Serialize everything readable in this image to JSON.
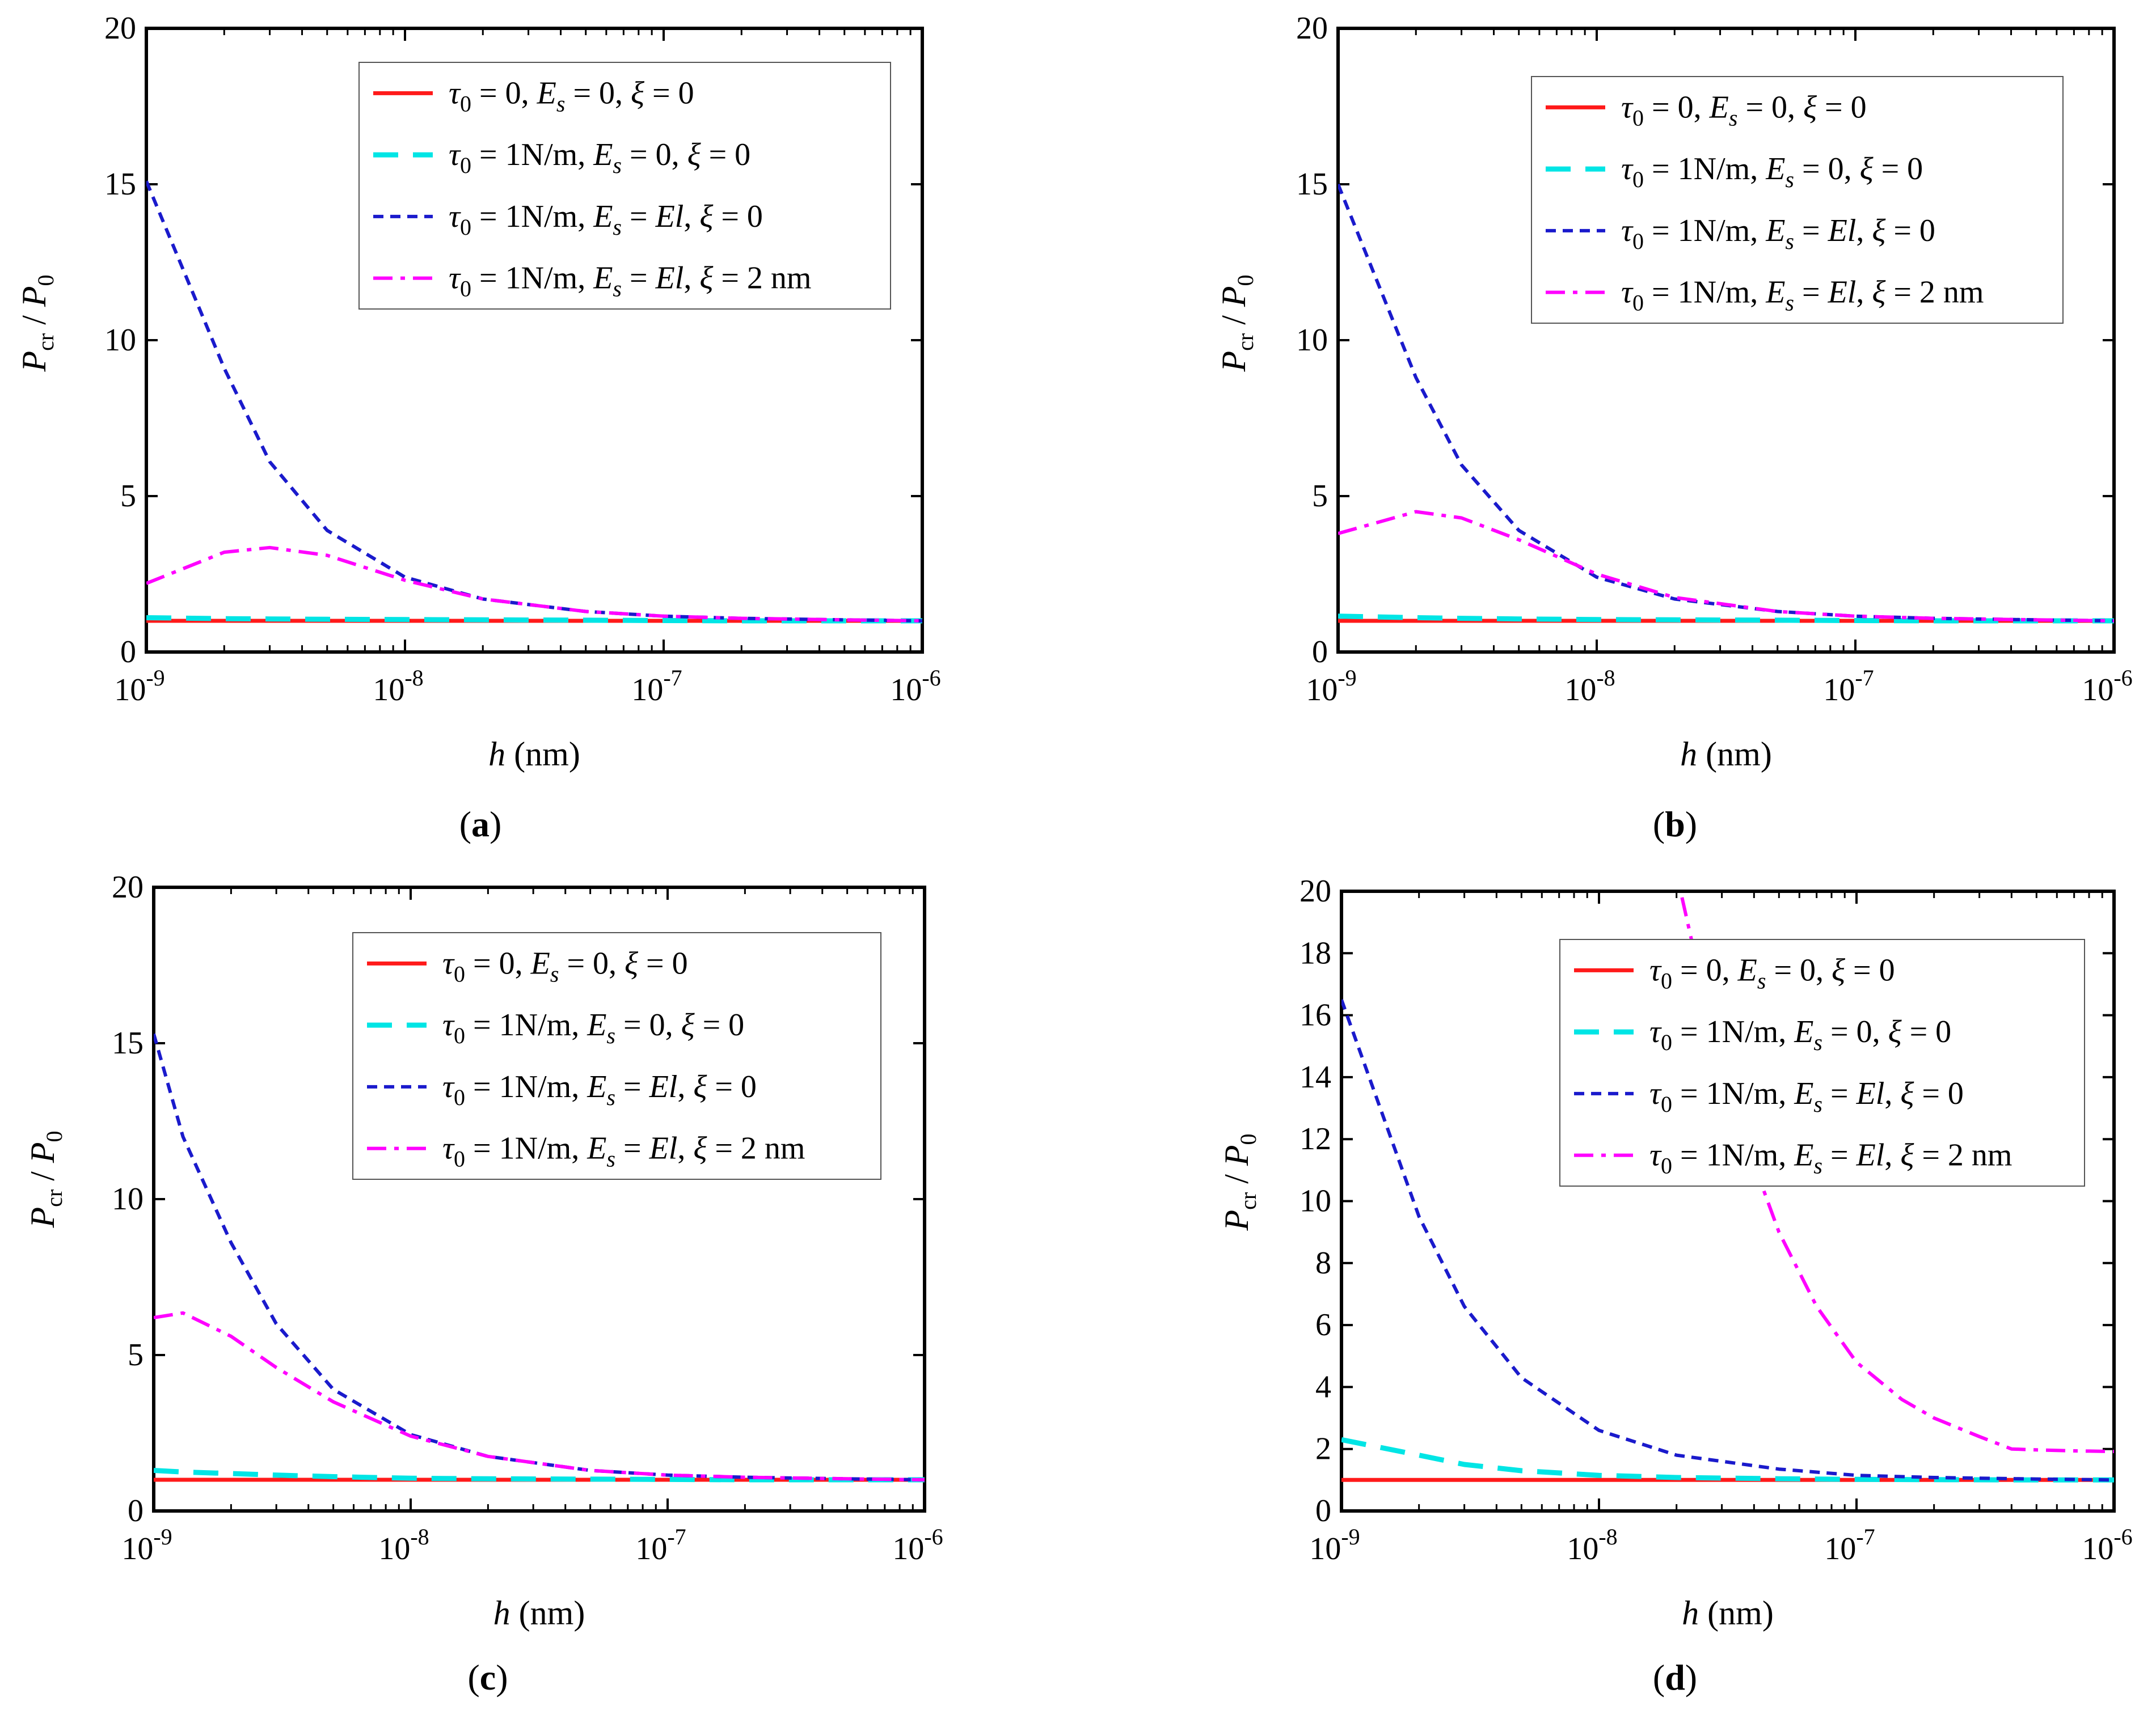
{
  "figure": {
    "panel_labels": [
      "a",
      "b",
      "c",
      "d"
    ],
    "x_tick_labels": [
      {
        "base": "10",
        "exp": "-9"
      },
      {
        "base": "10",
        "exp": "-8"
      },
      {
        "base": "10",
        "exp": "-7"
      },
      {
        "base": "10",
        "exp": "-6"
      }
    ],
    "xlabel": {
      "var": "h",
      "unit": "(nm)"
    },
    "ylabel": {
      "p": "P",
      "cr": "cr",
      "slash": "/",
      "zero": "0"
    }
  },
  "colors": {
    "series1": "#ff1a1a",
    "series2": "#00e5e5",
    "series3": "#1a1acc",
    "series4": "#ff00ff"
  },
  "legend_entries": [
    {
      "tau": "τ",
      "tau_sub": "0",
      "tau_val": " = 0, ",
      "es": "E",
      "es_sub": "s",
      "es_val": " = 0, ",
      "xi": "ξ",
      "xi_val": " = 0"
    },
    {
      "tau": "τ",
      "tau_sub": "0",
      "tau_val": " = 1N/m, ",
      "es": "E",
      "es_sub": "s",
      "es_val": " = 0, ",
      "xi": "ξ",
      "xi_val": " = 0"
    },
    {
      "tau": "τ",
      "tau_sub": "0",
      "tau_val": " = 1N/m, ",
      "es": "E",
      "es_sub": "s",
      "es_val": " = ",
      "el": "El",
      "el_tail": ", ",
      "xi": "ξ",
      "xi_val": " = 0"
    },
    {
      "tau": "τ",
      "tau_sub": "0",
      "tau_val": " = 1N/m, ",
      "es": "E",
      "es_sub": "s",
      "es_val": " = ",
      "el": "El",
      "el_tail": ", ",
      "xi": "ξ",
      "xi_val": " = 2 nm"
    }
  ],
  "chart_data": [
    {
      "type": "line",
      "panel": "a",
      "xscale": "log",
      "xlim": [
        1e-09,
        1e-06
      ],
      "ylim": [
        0,
        20
      ],
      "yticks": [
        0,
        5,
        10,
        15,
        20
      ],
      "legend_position": "top-right",
      "x": [
        1e-09,
        2e-09,
        3e-09,
        5e-09,
        1e-08,
        2e-08,
        5e-08,
        1e-07,
        2e-07,
        5e-07,
        1e-06
      ],
      "series": [
        {
          "name": "τ0 = 0, Es = 0, ξ = 0",
          "values": [
            1,
            1,
            1,
            1,
            1,
            1,
            1,
            1,
            1,
            1,
            1
          ]
        },
        {
          "name": "τ0 = 1N/m, Es = 0, ξ = 0",
          "values": [
            1.1,
            1.07,
            1.06,
            1.05,
            1.04,
            1.03,
            1.02,
            1.01,
            1.0,
            1.0,
            1.0
          ]
        },
        {
          "name": "τ0 = 1N/m, Es = El, ξ = 0",
          "values": [
            15.1,
            9.1,
            6.1,
            3.9,
            2.4,
            1.7,
            1.3,
            1.15,
            1.08,
            1.03,
            1.0
          ]
        },
        {
          "name": "τ0 = 1N/m, Es = El, ξ = 2 nm",
          "values": [
            2.2,
            3.2,
            3.35,
            3.1,
            2.3,
            1.7,
            1.3,
            1.15,
            1.08,
            1.03,
            1.0
          ]
        }
      ]
    },
    {
      "type": "line",
      "panel": "b",
      "xscale": "log",
      "xlim": [
        1e-09,
        1e-06
      ],
      "ylim": [
        0,
        20
      ],
      "yticks": [
        0,
        5,
        10,
        15,
        20
      ],
      "legend_position": "top-right",
      "x": [
        1e-09,
        2e-09,
        3e-09,
        5e-09,
        1e-08,
        2e-08,
        5e-08,
        1e-07,
        2e-07,
        5e-07,
        1e-06
      ],
      "series": [
        {
          "name": "τ0 = 0, Es = 0, ξ = 0",
          "values": [
            1,
            1,
            1,
            1,
            1,
            1,
            1,
            1,
            1,
            1,
            1
          ]
        },
        {
          "name": "τ0 = 1N/m, Es = 0, ξ = 0",
          "values": [
            1.15,
            1.1,
            1.08,
            1.06,
            1.04,
            1.03,
            1.02,
            1.01,
            1.0,
            1.0,
            1.0
          ]
        },
        {
          "name": "τ0 = 1N/m, Es = El, ξ = 0",
          "values": [
            15.0,
            8.8,
            6.0,
            3.9,
            2.4,
            1.7,
            1.3,
            1.15,
            1.08,
            1.03,
            1.0
          ]
        },
        {
          "name": "τ0 = 1N/m, Es = El, ξ = 2 nm",
          "values": [
            3.8,
            4.5,
            4.3,
            3.6,
            2.5,
            1.75,
            1.3,
            1.15,
            1.08,
            1.03,
            1.0
          ]
        }
      ]
    },
    {
      "type": "line",
      "panel": "c",
      "xscale": "log",
      "xlim": [
        1e-09,
        1e-06
      ],
      "ylim": [
        0,
        20
      ],
      "yticks": [
        0,
        5,
        10,
        15,
        20
      ],
      "legend_position": "top-right",
      "x": [
        1e-09,
        1.3e-09,
        2e-09,
        3e-09,
        5e-09,
        1e-08,
        2e-08,
        5e-08,
        1e-07,
        2e-07,
        5e-07,
        1e-06
      ],
      "series": [
        {
          "name": "τ0 = 0, Es = 0, ξ = 0",
          "values": [
            1,
            1,
            1,
            1,
            1,
            1,
            1,
            1,
            1,
            1,
            1,
            1
          ]
        },
        {
          "name": "τ0 = 1N/m, Es = 0, ξ = 0",
          "values": [
            1.3,
            1.25,
            1.2,
            1.15,
            1.1,
            1.05,
            1.03,
            1.02,
            1.01,
            1.0,
            1.0,
            1.0
          ]
        },
        {
          "name": "τ0 = 1N/m, Es = El, ξ = 0",
          "values": [
            15.3,
            12.0,
            8.6,
            6.0,
            3.9,
            2.45,
            1.75,
            1.3,
            1.15,
            1.08,
            1.03,
            1.0
          ]
        },
        {
          "name": "τ0 = 1N/m, Es = El, ξ = 2 nm",
          "values": [
            6.2,
            6.35,
            5.6,
            4.6,
            3.5,
            2.4,
            1.75,
            1.3,
            1.15,
            1.08,
            1.03,
            1.0
          ]
        }
      ]
    },
    {
      "type": "line",
      "panel": "d",
      "xscale": "log",
      "xlim": [
        1e-09,
        1e-06
      ],
      "ylim": [
        0,
        20
      ],
      "yticks": [
        0,
        2,
        4,
        6,
        8,
        10,
        12,
        14,
        16,
        18,
        20
      ],
      "legend_position": "top-right",
      "x": [
        1e-09,
        2e-09,
        3e-09,
        5e-09,
        1e-08,
        2e-08,
        5e-08,
        1e-07,
        2e-07,
        5e-07,
        1e-06
      ],
      "series": [
        {
          "name": "τ0 = 0, Es = 0, ξ = 0",
          "values": [
            1,
            1,
            1,
            1,
            1,
            1,
            1,
            1,
            1,
            1,
            1
          ]
        },
        {
          "name": "τ0 = 1N/m, Es = 0, ξ = 0",
          "values": [
            2.3,
            1.8,
            1.5,
            1.3,
            1.15,
            1.08,
            1.04,
            1.02,
            1.01,
            1.0,
            1.0
          ]
        },
        {
          "name": "τ0 = 1N/m, Es = El, ξ = 0",
          "values": [
            16.5,
            9.5,
            6.6,
            4.3,
            2.6,
            1.8,
            1.35,
            1.15,
            1.08,
            1.03,
            1.0
          ]
        },
        {
          "name": "τ0 = 1N/m, Es = El, ξ = 2 nm",
          "x": [
            2.1e-08,
            2.5e-08,
            3e-08,
            4e-08,
            5e-08,
            7e-08,
            1e-07,
            1.5e-07,
            2e-07,
            3e-07,
            4e-07,
            5e-07,
            7e-07,
            1e-06
          ],
          "values": [
            19.8,
            17.0,
            14.5,
            11.2,
            9.0,
            6.6,
            4.8,
            3.6,
            3.0,
            2.4,
            2.0,
            1.97,
            1.94,
            1.92
          ]
        }
      ]
    }
  ]
}
